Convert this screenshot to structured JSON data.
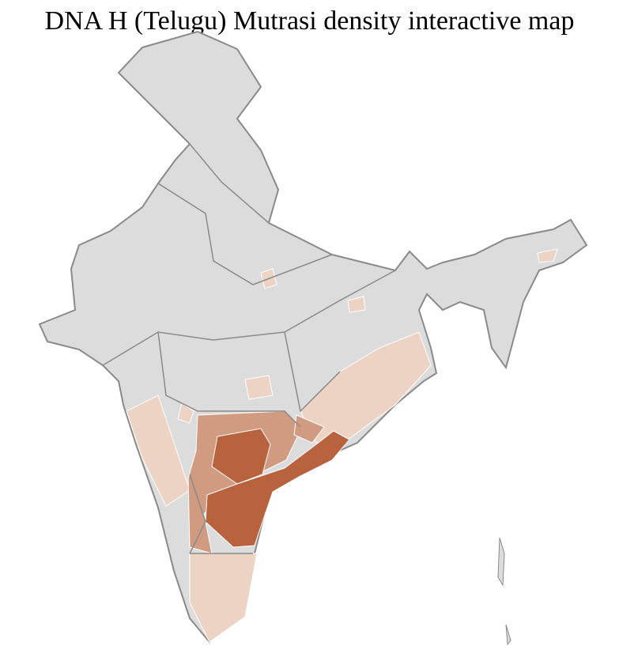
{
  "title": "DNA H (Telugu) Mutrasi density interactive map",
  "colors": {
    "no_data": "#dcdcdc",
    "low": "#ecd3c4",
    "medium": "#d09b80",
    "high": "#b8623e",
    "state_border": "#8a8a8a",
    "district_border": "#ffffff"
  },
  "density_levels": [
    "none",
    "low",
    "medium",
    "high"
  ]
}
